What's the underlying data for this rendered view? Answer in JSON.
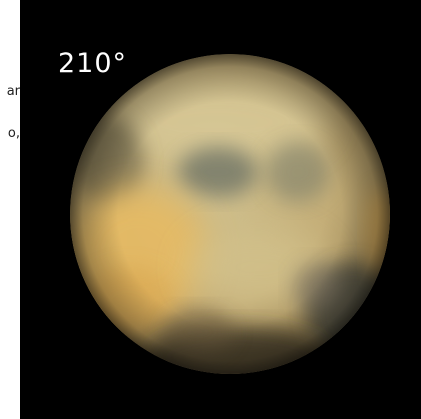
{
  "side_text": {
    "line1": "ar",
    "line2": "o,"
  },
  "image": {
    "angle_label": "210°",
    "subject_colors": {
      "background": "#000000",
      "surface_light": "#d8c48c",
      "surface_gold": "#e8b860",
      "surface_dark": "#4a4838",
      "surface_gray": "#7a7a64"
    }
  }
}
